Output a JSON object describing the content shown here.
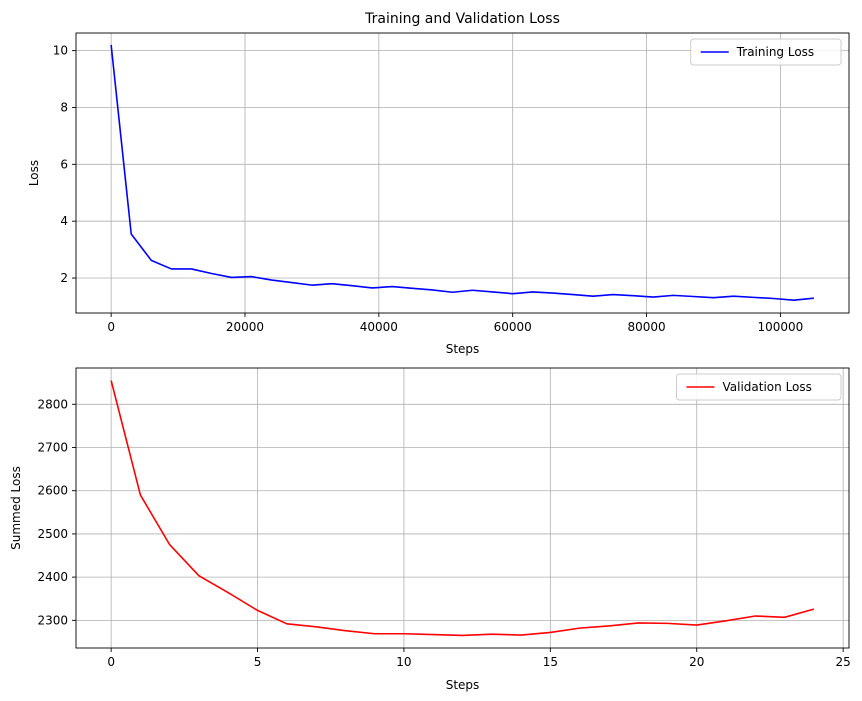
{
  "chart_data": [
    {
      "type": "line",
      "title": "Training and Validation Loss",
      "xlabel": "Steps",
      "ylabel": "Loss",
      "xlim": [
        -5250,
        110250
      ],
      "ylim": [
        0.77,
        10.62
      ],
      "xticks": [
        0,
        20000,
        40000,
        60000,
        80000,
        100000
      ],
      "yticks": [
        2,
        4,
        6,
        8,
        10
      ],
      "grid": true,
      "legend_position": "top-right",
      "series": [
        {
          "name": "Training Loss",
          "color": "#0000ff",
          "x": [
            0,
            3000,
            6000,
            9000,
            12000,
            15000,
            18000,
            21000,
            24000,
            27000,
            30000,
            33000,
            36000,
            39000,
            42000,
            45000,
            48000,
            51000,
            54000,
            57000,
            60000,
            63000,
            66000,
            69000,
            72000,
            75000,
            78000,
            81000,
            84000,
            87000,
            90000,
            93000,
            96000,
            99000,
            102000,
            105000
          ],
          "y": [
            10.2,
            3.55,
            2.62,
            2.32,
            2.32,
            2.16,
            2.02,
            2.05,
            1.93,
            1.84,
            1.75,
            1.8,
            1.73,
            1.65,
            1.7,
            1.64,
            1.58,
            1.5,
            1.57,
            1.51,
            1.45,
            1.51,
            1.47,
            1.42,
            1.36,
            1.42,
            1.38,
            1.33,
            1.39,
            1.35,
            1.31,
            1.36,
            1.32,
            1.28,
            1.22,
            1.29
          ]
        }
      ]
    },
    {
      "type": "line",
      "title": "",
      "xlabel": "Steps",
      "ylabel": "Summed Loss",
      "xlim": [
        -1.2,
        25.2
      ],
      "ylim": [
        2236,
        2884
      ],
      "xticks": [
        0,
        5,
        10,
        15,
        20,
        25
      ],
      "yticks": [
        2300,
        2400,
        2500,
        2600,
        2700,
        2800
      ],
      "grid": true,
      "legend_position": "top-right",
      "series": [
        {
          "name": "Validation Loss",
          "color": "#ff0000",
          "x": [
            0,
            1,
            2,
            3,
            4,
            5,
            6,
            7,
            8,
            9,
            10,
            11,
            12,
            13,
            14,
            15,
            16,
            17,
            18,
            19,
            20,
            21,
            22,
            23,
            24
          ],
          "y": [
            2855,
            2590,
            2475,
            2403,
            2364,
            2323,
            2292,
            2285,
            2276,
            2269,
            2269,
            2267,
            2265,
            2268,
            2266,
            2272,
            2282,
            2287,
            2294,
            2293,
            2289,
            2299,
            2310,
            2307,
            2326
          ]
        }
      ]
    }
  ]
}
